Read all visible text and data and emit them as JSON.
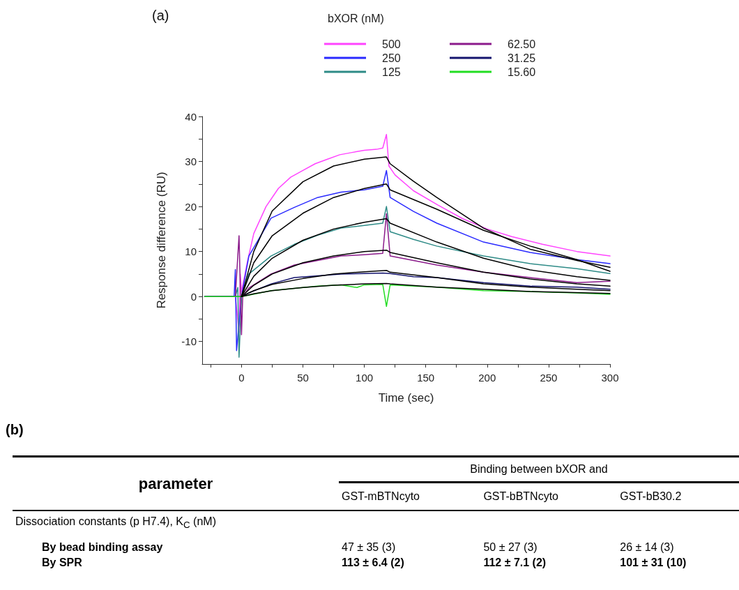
{
  "chart_data": [
    {
      "type": "line",
      "title": "(a)",
      "xlabel": "Time (sec)",
      "ylabel": "Response difference (RU)",
      "legend_title": "bXOR (nM)",
      "legend": "top",
      "grid": false,
      "marker": "none",
      "line_style": "solid",
      "xlim": [
        -32,
        300
      ],
      "xticks": [
        {
          "value": -25,
          "label": null
        },
        0,
        {
          "value": 25,
          "label": null
        },
        50,
        {
          "value": 75,
          "label": null
        },
        100,
        {
          "value": 125,
          "label": null
        },
        150,
        {
          "value": 175,
          "label": null
        },
        200,
        {
          "value": 225,
          "label": null
        },
        250,
        {
          "value": 275,
          "label": null
        },
        300
      ],
      "ylim": [
        -15,
        40
      ],
      "yticks": [
        -10,
        {
          "value": -5,
          "label": null
        },
        0,
        {
          "value": 5,
          "label": null
        },
        10,
        {
          "value": 15,
          "label": null
        },
        20,
        {
          "value": 25,
          "label": null
        },
        30,
        {
          "value": 35,
          "label": null
        },
        40
      ],
      "series": [
        {
          "name": "500",
          "color": "#ff44ff",
          "x": [
            -30,
            -5,
            -2,
            -1,
            0,
            5,
            10,
            20,
            30,
            40,
            50,
            60,
            70,
            80,
            90,
            100,
            110,
            115,
            118,
            120,
            125,
            140,
            160,
            180,
            200,
            220,
            245,
            273,
            300
          ],
          "values": [
            0,
            0,
            -8,
            5,
            1,
            8,
            14,
            20,
            24,
            26.5,
            28,
            29.5,
            30.5,
            31.5,
            32,
            32.5,
            32.7,
            33,
            36,
            29,
            27,
            23.5,
            20.3,
            17.3,
            15,
            13.3,
            11.6,
            10,
            9
          ]
        },
        {
          "name": "250",
          "color": "#2a2aff",
          "x": [
            -30,
            -6,
            -5,
            -4,
            0,
            6,
            24,
            43,
            62,
            81,
            100,
            115,
            118,
            121,
            140,
            159,
            197,
            235,
            273,
            300
          ],
          "values": [
            0,
            0,
            6,
            -12,
            0,
            9,
            17.4,
            19.8,
            22,
            23.2,
            23.7,
            24.5,
            28,
            22,
            18.9,
            16.3,
            12.1,
            9.8,
            8.2,
            7.3
          ]
        },
        {
          "name": "125",
          "color": "#2e8b87",
          "x": [
            -30,
            -5,
            -3,
            -2,
            0,
            6,
            24,
            43,
            62,
            81,
            100,
            115,
            118,
            121,
            140,
            159,
            197,
            235,
            273,
            300
          ],
          "values": [
            0,
            0,
            2,
            -13.5,
            0,
            5,
            9,
            11.6,
            13.6,
            15.2,
            15.8,
            16.3,
            20,
            14.4,
            12.7,
            11.2,
            9,
            7.3,
            6.2,
            5.1
          ]
        },
        {
          "name": "62.50",
          "color": "#8b1a8b",
          "x": [
            -30,
            -5,
            -2,
            0,
            1,
            6,
            24,
            43,
            62,
            81,
            100,
            115,
            118,
            121,
            140,
            159,
            197,
            235,
            273,
            300
          ],
          "values": [
            0,
            0,
            13.5,
            -8.5,
            0,
            1.9,
            5,
            7,
            8,
            9,
            9.3,
            9.6,
            18.4,
            9,
            8,
            7,
            5.4,
            4.2,
            3.1,
            3.4
          ]
        },
        {
          "name": "31.25",
          "color": "#14146e",
          "x": [
            -30,
            -5,
            0,
            6,
            24,
            43,
            62,
            81,
            100,
            115,
            121,
            140,
            159,
            197,
            235,
            273,
            300
          ],
          "values": [
            0,
            0,
            0,
            0.8,
            2.8,
            4.2,
            4.6,
            5,
            5.1,
            5.2,
            5.1,
            4.4,
            4.2,
            3.1,
            2.3,
            2.1,
            1.6
          ]
        },
        {
          "name": "15.60",
          "color": "#22dd22",
          "x": [
            -30,
            -5,
            0,
            6,
            24,
            43,
            62,
            81,
            94,
            100,
            115,
            118,
            121,
            159,
            197,
            235,
            273,
            300
          ],
          "values": [
            0,
            0,
            0,
            0.3,
            1.3,
            1.8,
            2.3,
            2.6,
            2,
            2.6,
            2.7,
            -2.2,
            2.6,
            2.1,
            1.3,
            1.1,
            0.8,
            0.5
          ]
        },
        {
          "color": "#000000",
          "x": [
            0,
            10,
            25,
            50,
            75,
            100,
            118,
            121,
            140,
            159,
            197,
            235,
            273,
            300
          ],
          "values": [
            0,
            10,
            19,
            25.5,
            29,
            30.5,
            31,
            29.5,
            25.6,
            22,
            15.2,
            10.5,
            8,
            6.5
          ]
        },
        {
          "color": "#000000",
          "x": [
            0,
            10,
            25,
            50,
            75,
            100,
            118,
            121,
            159,
            197,
            235,
            273,
            300
          ],
          "values": [
            0,
            7.5,
            13.5,
            18.5,
            22,
            24,
            25,
            23.7,
            19.4,
            14.7,
            11.2,
            8.2,
            5.6
          ]
        },
        {
          "color": "#000000",
          "x": [
            0,
            10,
            25,
            50,
            75,
            100,
            118,
            121,
            159,
            197,
            235,
            273,
            300
          ],
          "values": [
            0,
            4.5,
            8.5,
            12.5,
            15,
            16.5,
            17.3,
            16.3,
            12.1,
            8.5,
            5.9,
            4.4,
            3.6
          ]
        },
        {
          "color": "#000000",
          "x": [
            0,
            10,
            25,
            50,
            75,
            100,
            118,
            121,
            159,
            197,
            235,
            273,
            300
          ],
          "values": [
            0,
            2.5,
            5,
            7.5,
            9,
            10,
            10.3,
            9.8,
            7.5,
            5.4,
            3.9,
            2.8,
            2.3
          ]
        },
        {
          "color": "#000000",
          "x": [
            0,
            10,
            25,
            50,
            75,
            100,
            118,
            121,
            159,
            197,
            235,
            273,
            300
          ],
          "values": [
            0,
            1.3,
            2.7,
            4,
            5,
            5.5,
            5.8,
            5.4,
            4.2,
            2.8,
            2.1,
            1.6,
            1.3
          ]
        },
        {
          "color": "#000000",
          "x": [
            0,
            10,
            25,
            50,
            75,
            100,
            118,
            121,
            159,
            197,
            235,
            300
          ],
          "values": [
            0,
            0.6,
            1.3,
            2,
            2.5,
            2.8,
            2.9,
            2.8,
            2.1,
            1.6,
            1.1,
            0.7
          ]
        }
      ]
    },
    {
      "type": "other",
      "title": "(b)",
      "annotations": [
        "parameter",
        "Binding between bXOR and",
        "GST-mBTNcyto",
        "GST-bBTNcyto",
        "GST-bB30.2",
        "Dissociation constants (p H7.4), K$_{C}$ (nM)",
        "By bead binding assay",
        "47 ± 35 (3)",
        "50 ± 27 (3)",
        "26 ± 14 (3)",
        "By SPR",
        "113 ± 6.4 (2)",
        "112 ± 7.1 (2)",
        "101 ± 31 (10)"
      ]
    }
  ]
}
